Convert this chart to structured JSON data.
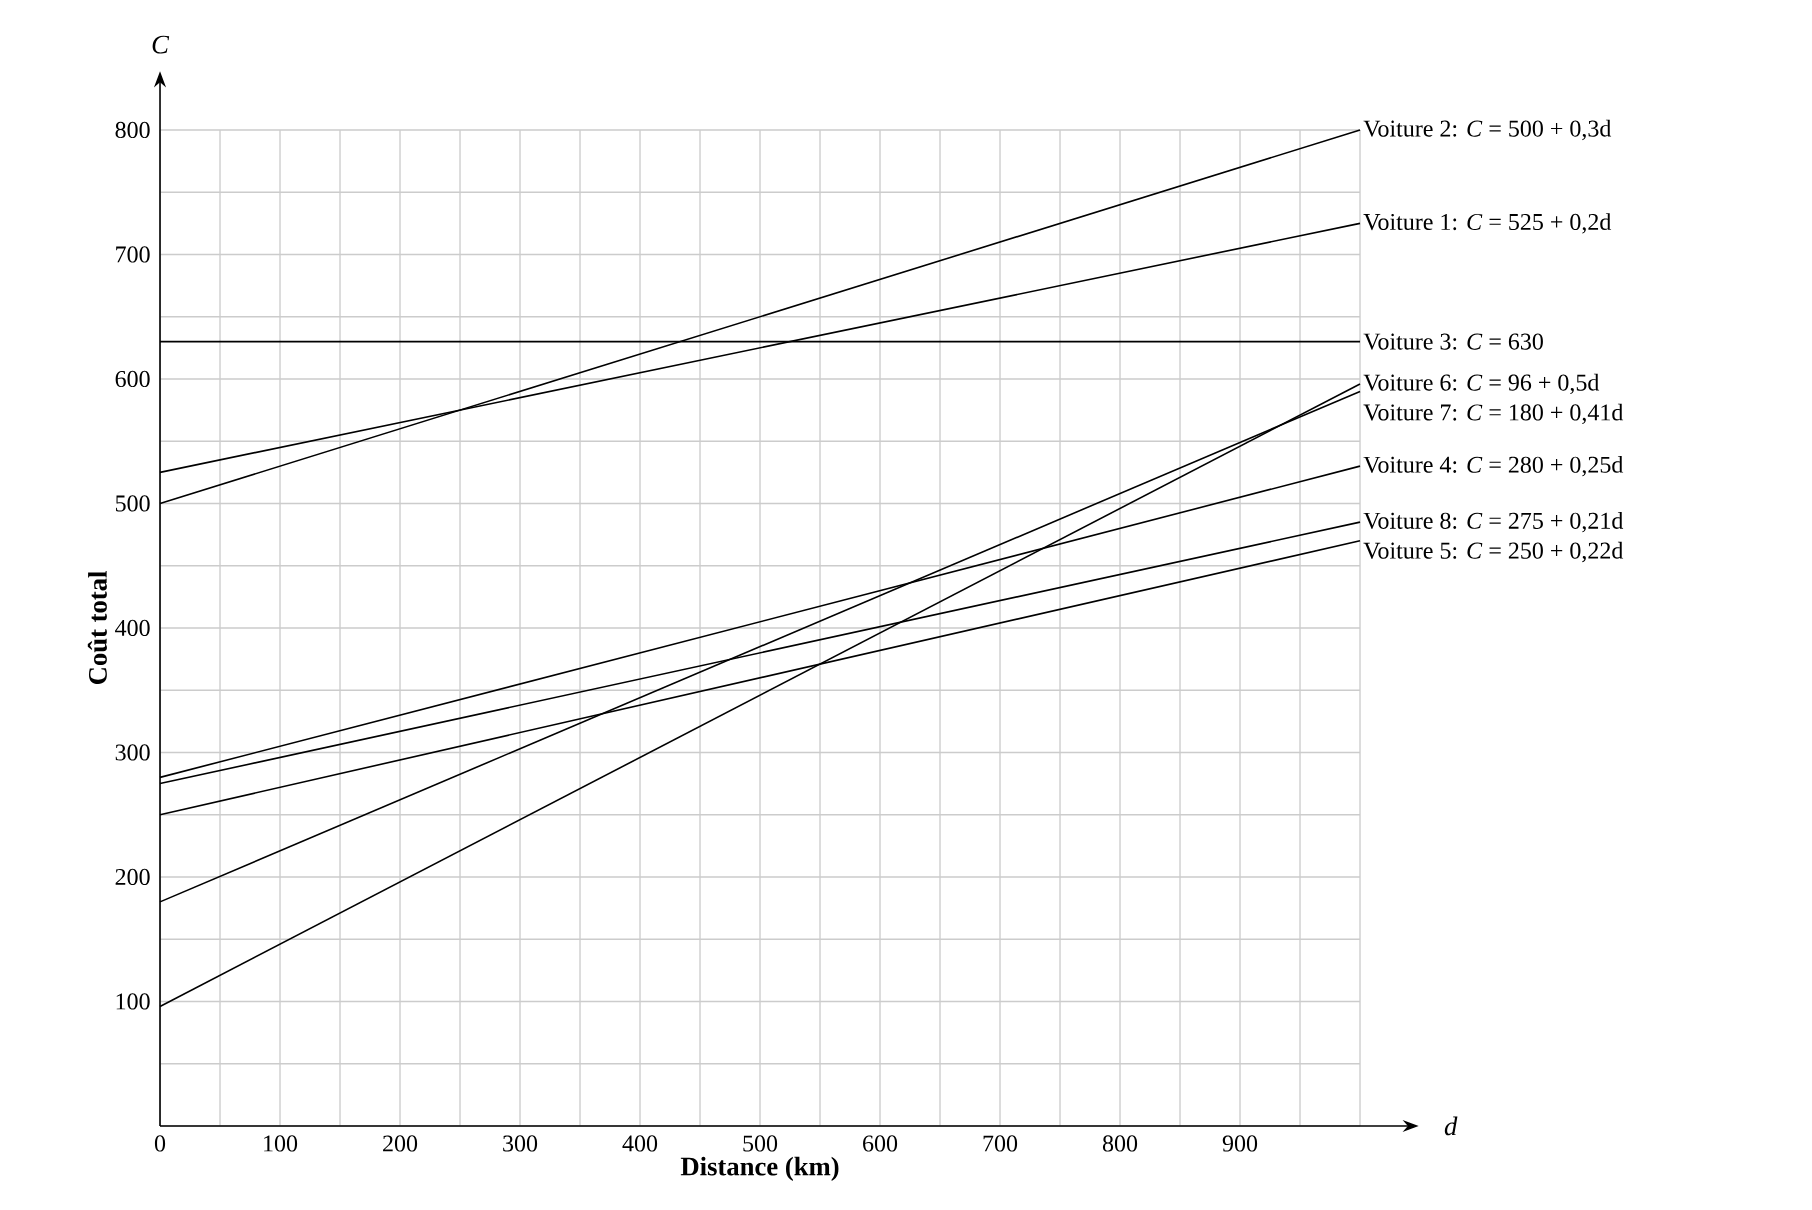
{
  "chart_data": {
    "type": "line",
    "xlabel": "Distance (km)",
    "ylabel": "Coût total",
    "annotations": [
      "C",
      "d"
    ],
    "xlim": [
      0,
      1000
    ],
    "ylim": [
      0,
      800
    ],
    "xticks": [
      0,
      {
        "value": 50,
        "label": null
      },
      100,
      {
        "value": 150,
        "label": null
      },
      200,
      {
        "value": 250,
        "label": null
      },
      300,
      {
        "value": 350,
        "label": null
      },
      400,
      {
        "value": 450,
        "label": null
      },
      500,
      {
        "value": 550,
        "label": null
      },
      600,
      {
        "value": 650,
        "label": null
      },
      700,
      {
        "value": 750,
        "label": null
      },
      800,
      {
        "value": 850,
        "label": null
      },
      900,
      {
        "value": 950,
        "label": null
      },
      {
        "value": 1000,
        "label": null
      }
    ],
    "yticks": [
      {
        "value": 0,
        "label": null
      },
      {
        "value": 50,
        "label": null
      },
      100,
      {
        "value": 150,
        "label": null
      },
      200,
      {
        "value": 250,
        "label": null
      },
      300,
      {
        "value": 350,
        "label": null
      },
      400,
      {
        "value": 450,
        "label": null
      },
      500,
      {
        "value": 550,
        "label": null
      },
      600,
      {
        "value": 650,
        "label": null
      },
      700,
      {
        "value": 750,
        "label": null
      },
      800
    ],
    "grid": true,
    "marker": "none",
    "line_style": "solid",
    "x": [
      0,
      1000
    ],
    "series": [
      {
        "name": "Voiture 2: *C* = 500 + 0,3d",
        "color": "#000000",
        "values": [
          500,
          800
        ]
      },
      {
        "name": "Voiture 1: *C* = 525 + 0,2d",
        "color": "#000000",
        "values": [
          525,
          725
        ]
      },
      {
        "name": "Voiture 3: *C* = 630",
        "color": "#000000",
        "values": [
          630,
          630
        ]
      },
      {
        "name": "Voiture 6: *C* = 96 + 0,5d",
        "color": "#000000",
        "values": [
          96,
          596
        ]
      },
      {
        "name": "Voiture 7: *C* = 180 + 0,41d",
        "color": "#000000",
        "values": [
          180,
          590
        ]
      },
      {
        "name": "Voiture 4: *C* = 280 + 0,25d",
        "color": "#000000",
        "values": [
          280,
          530
        ]
      },
      {
        "name": "Voiture 8: *C* = 275 + 0,21d",
        "color": "#000000",
        "values": [
          275,
          485
        ]
      },
      {
        "name": "Voiture 5: *C* = 250 + 0,22d",
        "color": "#000000",
        "values": [
          250,
          470
        ]
      }
    ]
  }
}
